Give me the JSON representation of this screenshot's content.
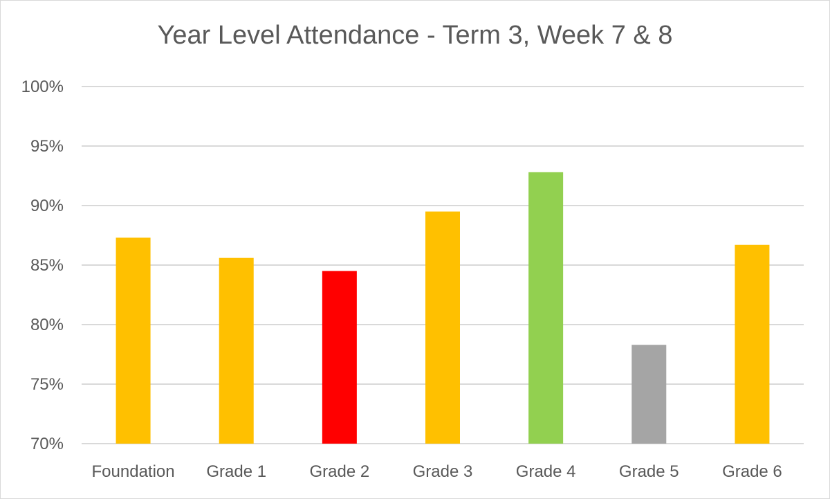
{
  "chart_data": {
    "type": "bar",
    "title": "Year Level Attendance - Term 3, Week 7 & 8",
    "xlabel": "",
    "ylabel": "",
    "categories": [
      "Foundation",
      "Grade 1",
      "Grade 2",
      "Grade 3",
      "Grade 4",
      "Grade 5",
      "Grade 6"
    ],
    "values": [
      87.3,
      85.6,
      84.5,
      89.5,
      92.8,
      78.3,
      86.7
    ],
    "bar_colors": [
      "#ffc000",
      "#ffc000",
      "#ff0000",
      "#ffc000",
      "#92d050",
      "#a5a5a5",
      "#ffc000"
    ],
    "ylim": [
      70,
      100
    ],
    "y_ticks": [
      {
        "value": 100,
        "label": "100%"
      },
      {
        "value": 95,
        "label": "95%"
      },
      {
        "value": 90,
        "label": "90%"
      },
      {
        "value": 85,
        "label": "85%"
      },
      {
        "value": 80,
        "label": "80%"
      },
      {
        "value": 75,
        "label": "75%"
      },
      {
        "value": 70,
        "label": "70%"
      }
    ],
    "grid": true,
    "legend": "none",
    "gridline_color": "#d9d9d9"
  }
}
